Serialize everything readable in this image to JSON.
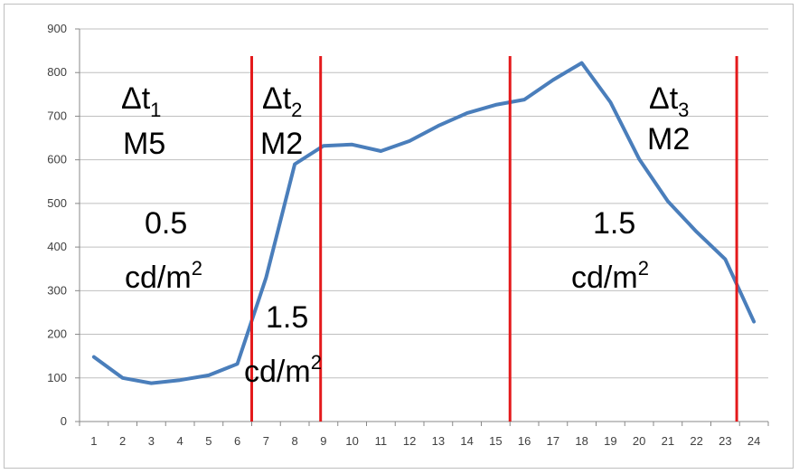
{
  "chart_data": {
    "type": "line",
    "title": "",
    "xlabel": "",
    "ylabel": "",
    "x": [
      "1",
      "2",
      "3",
      "4",
      "5",
      "6",
      "7",
      "8",
      "9",
      "10",
      "11",
      "12",
      "13",
      "14",
      "15",
      "16",
      "17",
      "18",
      "19",
      "20",
      "21",
      "22",
      "23",
      "24"
    ],
    "series": [
      {
        "values": [
          148,
          100,
          88,
          95,
          106,
          132,
          330,
          590,
          632,
          635,
          620,
          643,
          678,
          707,
          726,
          738,
          783,
          822,
          732,
          602,
          505,
          435,
          372,
          229
        ],
        "color": "#4a7ebb"
      }
    ],
    "ylim": [
      0,
      900
    ],
    "yticks": [
      "0",
      "100",
      "200",
      "300",
      "400",
      "500",
      "600",
      "700",
      "800",
      "900"
    ],
    "grid": true,
    "legend": "none",
    "vlines": [
      6.5,
      8.9,
      15.5,
      23.4
    ],
    "vline_color": "#e41a1c",
    "annotations": {
      "dt1": {
        "base": "Δt",
        "sub": "1",
        "mode": "M5",
        "lum": "0.5",
        "unit": "cd/m",
        "sup": "2"
      },
      "dt2": {
        "base": "Δt",
        "sub": "2",
        "mode": "M2",
        "lum": "1.5",
        "unit": "cd/m",
        "sup": "2"
      },
      "dt3": {
        "base": "Δt",
        "sub": "3",
        "mode": "M2",
        "lum": "1.5",
        "unit": "cd/m",
        "sup": "2"
      }
    }
  }
}
